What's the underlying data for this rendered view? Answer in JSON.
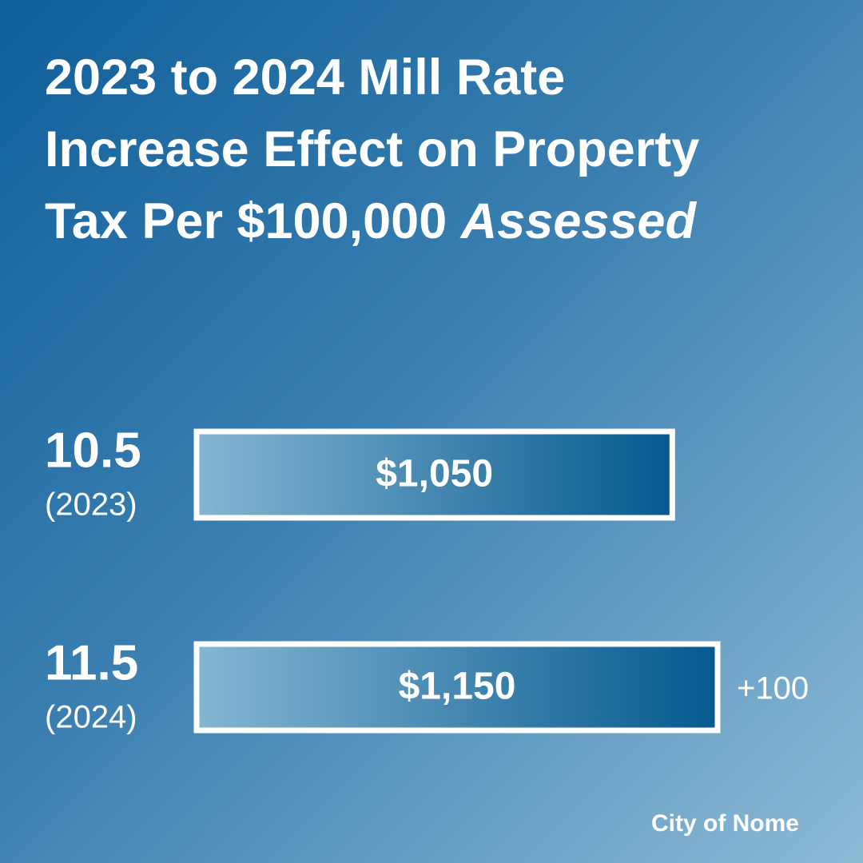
{
  "chart_data": {
    "type": "bar",
    "title": "2023 to 2024 Mill Rate Increase Effect on Property Tax Per $100,000",
    "title_emphasis": "Assessed",
    "categories": [
      "10.5",
      "11.5"
    ],
    "category_sublabels": [
      "(2023)",
      "(2024)"
    ],
    "values": [
      1050,
      1150
    ],
    "value_labels": [
      "$1,050",
      "$1,150"
    ],
    "annotation": "+100",
    "source": "City of Nome",
    "color_light": "#86b6d2",
    "color_dark": "#04598f"
  }
}
